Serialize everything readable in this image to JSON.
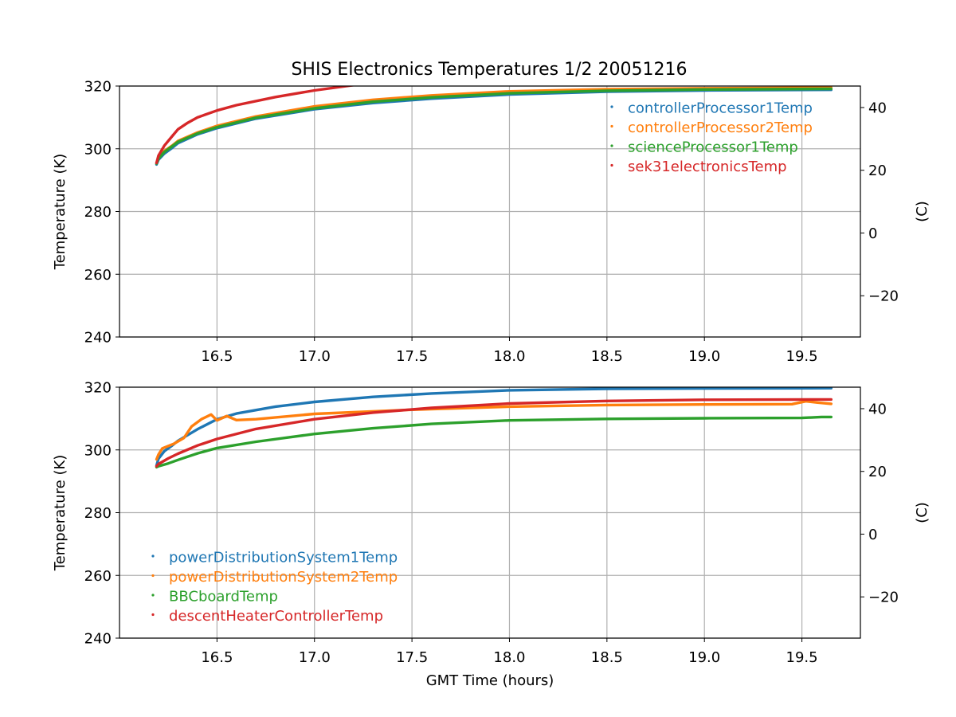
{
  "figure": {
    "title": "SHIS Electronics Temperatures 1/2 20051216"
  },
  "chart_data": [
    {
      "type": "line",
      "title": "SHIS Electronics Temperatures 1/2 20051216",
      "xlabel": "",
      "ylabel": "Temperature (K)",
      "y2label": "(C)",
      "xlim": [
        16.0,
        19.8
      ],
      "ylim": [
        240,
        320
      ],
      "y2lim": [
        -33.15,
        46.85
      ],
      "xticks": [
        16.5,
        17.0,
        17.5,
        18.0,
        18.5,
        19.0,
        19.5
      ],
      "xtick_labels": [
        "16.5",
        "17.0",
        "17.5",
        "18.0",
        "18.5",
        "19.0",
        "19.5"
      ],
      "yticks": [
        240,
        260,
        280,
        300,
        320
      ],
      "ytick_labels": [
        "240",
        "260",
        "280",
        "300",
        "320"
      ],
      "y2ticks": [
        -20,
        0,
        20,
        40
      ],
      "y2tick_labels": [
        "−20",
        "0",
        "20",
        "40"
      ],
      "grid": true,
      "legend_position": "top-right",
      "series": [
        {
          "name": "controllerProcessor1Temp",
          "color": "#1f77b4",
          "x": [
            16.19,
            16.2,
            16.23,
            16.27,
            16.3,
            16.4,
            16.5,
            16.7,
            17.0,
            17.3,
            17.6,
            18.0,
            18.5,
            19.0,
            19.65
          ],
          "y": [
            295.0,
            296.5,
            298.5,
            300.3,
            301.8,
            304.6,
            306.6,
            309.6,
            312.6,
            314.6,
            316.0,
            317.3,
            318.2,
            318.6,
            318.8
          ]
        },
        {
          "name": "controllerProcessor2Temp",
          "color": "#ff7f0e",
          "x": [
            16.19,
            16.2,
            16.23,
            16.27,
            16.3,
            16.4,
            16.5,
            16.7,
            17.0,
            17.3,
            17.6,
            18.0,
            18.5,
            19.0,
            19.65
          ],
          "y": [
            295.5,
            297.2,
            299.3,
            301.0,
            302.5,
            305.2,
            307.3,
            310.3,
            313.5,
            315.6,
            317.0,
            318.3,
            319.0,
            319.3,
            319.5
          ]
        },
        {
          "name": "scienceProcessor1Temp",
          "color": "#2ca02c",
          "x": [
            16.19,
            16.2,
            16.23,
            16.27,
            16.3,
            16.4,
            16.5,
            16.7,
            17.0,
            17.3,
            17.6,
            18.0,
            18.5,
            19.0,
            19.65
          ],
          "y": [
            295.3,
            296.9,
            299.0,
            300.8,
            302.2,
            304.9,
            306.9,
            309.9,
            312.9,
            315.0,
            316.4,
            317.7,
            318.5,
            318.9,
            319.1
          ]
        },
        {
          "name": "sek31electronicsTemp",
          "color": "#d62728",
          "x": [
            16.19,
            16.2,
            16.23,
            16.27,
            16.3,
            16.35,
            16.4,
            16.5,
            16.6,
            16.8,
            17.0,
            17.2,
            17.5
          ],
          "y": [
            295.5,
            297.8,
            301.0,
            304.0,
            306.2,
            308.3,
            310.0,
            312.2,
            313.9,
            316.5,
            318.6,
            320.3,
            322.0
          ]
        }
      ]
    },
    {
      "type": "line",
      "title": "",
      "xlabel": "GMT Time (hours)",
      "ylabel": "Temperature (K)",
      "y2label": "(C)",
      "xlim": [
        16.0,
        19.8
      ],
      "ylim": [
        240,
        320
      ],
      "y2lim": [
        -33.15,
        46.85
      ],
      "xticks": [
        16.5,
        17.0,
        17.5,
        18.0,
        18.5,
        19.0,
        19.5
      ],
      "xtick_labels": [
        "16.5",
        "17.0",
        "17.5",
        "18.0",
        "18.5",
        "19.0",
        "19.5"
      ],
      "yticks": [
        240,
        260,
        280,
        300,
        320
      ],
      "ytick_labels": [
        "240",
        "260",
        "280",
        "300",
        "320"
      ],
      "y2ticks": [
        -20,
        0,
        20,
        40
      ],
      "y2tick_labels": [
        "−20",
        "0",
        "20",
        "40"
      ],
      "grid": true,
      "legend_position": "lower-left",
      "series": [
        {
          "name": "powerDistributionSystem1Temp",
          "color": "#1f77b4",
          "x": [
            16.19,
            16.2,
            16.23,
            16.27,
            16.3,
            16.4,
            16.5,
            16.6,
            16.8,
            17.0,
            17.3,
            17.6,
            18.0,
            18.5,
            19.0,
            19.65
          ],
          "y": [
            295.0,
            297.2,
            299.6,
            301.4,
            302.9,
            306.6,
            309.8,
            311.6,
            313.8,
            315.3,
            316.9,
            318.0,
            319.0,
            319.5,
            319.6,
            319.7
          ]
        },
        {
          "name": "powerDistributionSystem2Temp",
          "color": "#ff7f0e",
          "x": [
            16.19,
            16.2,
            16.22,
            16.28,
            16.33,
            16.37,
            16.42,
            16.47,
            16.5,
            16.55,
            16.6,
            16.7,
            17.0,
            17.5,
            18.0,
            18.5,
            19.0,
            19.45,
            19.52,
            19.58,
            19.65
          ],
          "y": [
            297.0,
            298.5,
            300.5,
            302.0,
            303.8,
            307.5,
            309.8,
            311.3,
            309.4,
            310.8,
            309.5,
            309.8,
            311.5,
            312.8,
            313.8,
            314.3,
            314.5,
            314.6,
            315.5,
            315.1,
            314.7
          ]
        },
        {
          "name": "BBCboardTemp",
          "color": "#2ca02c",
          "x": [
            16.19,
            16.2,
            16.25,
            16.3,
            16.4,
            16.5,
            16.7,
            17.0,
            17.3,
            17.6,
            18.0,
            18.5,
            19.0,
            19.5,
            19.6,
            19.65
          ],
          "y": [
            294.5,
            294.8,
            295.7,
            296.8,
            298.9,
            300.6,
            302.6,
            305.1,
            306.9,
            308.3,
            309.4,
            309.9,
            310.1,
            310.2,
            310.5,
            310.5
          ]
        },
        {
          "name": "descentHeaterControllerTemp",
          "color": "#d62728",
          "x": [
            16.19,
            16.2,
            16.25,
            16.3,
            16.4,
            16.5,
            16.7,
            17.0,
            17.3,
            17.6,
            18.0,
            18.5,
            19.0,
            19.65
          ],
          "y": [
            294.8,
            295.5,
            297.3,
            298.8,
            301.4,
            303.5,
            306.7,
            309.8,
            311.9,
            313.4,
            314.8,
            315.6,
            316.0,
            316.1
          ]
        }
      ]
    }
  ]
}
